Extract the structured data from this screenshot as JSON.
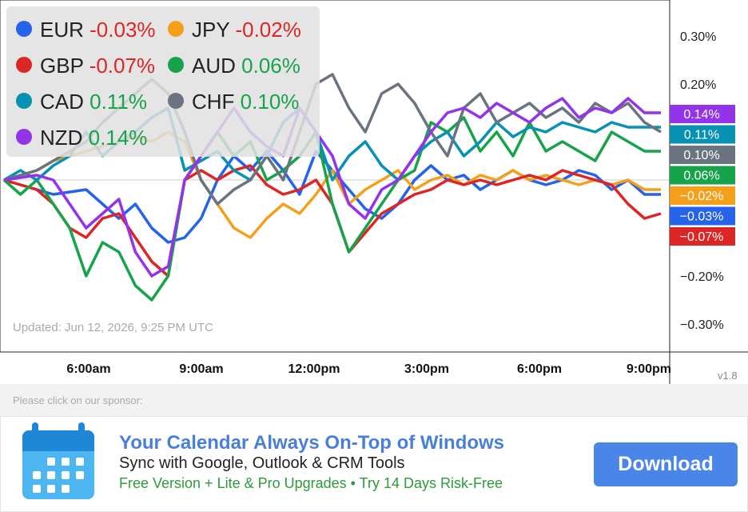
{
  "chart_data": {
    "type": "line",
    "x_ticks": [
      "6:00am",
      "9:00am",
      "12:00pm",
      "3:00pm",
      "6:00pm",
      "9:00pm"
    ],
    "y_ticks": [
      "0.30%",
      "0.20%",
      "−0.20%",
      "−0.30%"
    ],
    "ylim": [
      -0.35,
      0.35
    ],
    "updated": "Updated: Jun 12, 2026, 9:25 PM UTC",
    "series": [
      {
        "name": "EUR",
        "value": "-0.03%",
        "color": "#2563eb",
        "badge": "−0.03%",
        "final": -0.03,
        "points": [
          [
            0,
            0.0
          ],
          [
            3,
            -0.03
          ],
          [
            5,
            -0.02
          ],
          [
            6,
            -0.05
          ],
          [
            7,
            -0.08
          ],
          [
            8,
            -0.05
          ],
          [
            9,
            -0.1
          ],
          [
            10,
            -0.13
          ],
          [
            11,
            -0.12
          ],
          [
            12,
            -0.08
          ],
          [
            13,
            0.0
          ],
          [
            14,
            0.05
          ],
          [
            15,
            0.02
          ],
          [
            16,
            0.06
          ],
          [
            17,
            0.02
          ],
          [
            18,
            -0.03
          ],
          [
            19,
            0.06
          ],
          [
            20,
            0.02
          ],
          [
            21,
            -0.02
          ],
          [
            22,
            -0.06
          ],
          [
            23,
            -0.08
          ],
          [
            24,
            -0.05
          ],
          [
            25,
            0.0
          ],
          [
            26,
            0.03
          ],
          [
            27,
            0.0
          ],
          [
            28,
            0.01
          ],
          [
            29,
            -0.02
          ],
          [
            30,
            0.0
          ],
          [
            31,
            0.02
          ],
          [
            32,
            0.0
          ],
          [
            33,
            -0.01
          ],
          [
            34,
            0.0
          ],
          [
            35,
            0.02
          ],
          [
            36,
            0.01
          ],
          [
            37,
            -0.02
          ],
          [
            38,
            0.0
          ],
          [
            39,
            -0.03
          ],
          [
            40,
            -0.03
          ]
        ]
      },
      {
        "name": "JPY",
        "value": "-0.02%",
        "color": "#f5a01a",
        "badge": "−0.02%",
        "final": -0.02,
        "points": [
          [
            0,
            0.0
          ],
          [
            2,
            0.02
          ],
          [
            3,
            0.04
          ],
          [
            5,
            0.06
          ],
          [
            6,
            0.07
          ],
          [
            7,
            0.08
          ],
          [
            8,
            0.09
          ],
          [
            9,
            0.08
          ],
          [
            10,
            0.1
          ],
          [
            11,
            0.08
          ],
          [
            12,
            0.0
          ],
          [
            13,
            -0.05
          ],
          [
            14,
            -0.1
          ],
          [
            15,
            -0.12
          ],
          [
            16,
            -0.08
          ],
          [
            17,
            -0.05
          ],
          [
            18,
            -0.07
          ],
          [
            19,
            -0.03
          ],
          [
            20,
            0.02
          ],
          [
            21,
            -0.05
          ],
          [
            22,
            -0.02
          ],
          [
            23,
            0.0
          ],
          [
            24,
            0.02
          ],
          [
            25,
            -0.02
          ],
          [
            26,
            0.0
          ],
          [
            27,
            0.01
          ],
          [
            28,
            -0.01
          ],
          [
            29,
            0.01
          ],
          [
            30,
            0.0
          ],
          [
            31,
            0.02
          ],
          [
            32,
            0.0
          ],
          [
            33,
            0.01
          ],
          [
            34,
            0.0
          ],
          [
            35,
            -0.01
          ],
          [
            36,
            0.0
          ],
          [
            37,
            -0.01
          ],
          [
            38,
            0.0
          ],
          [
            39,
            -0.02
          ],
          [
            40,
            -0.02
          ]
        ]
      },
      {
        "name": "GBP",
        "value": "-0.07%",
        "color": "#dc2626",
        "badge": "−0.07%",
        "final": -0.07,
        "points": [
          [
            0,
            0.0
          ],
          [
            2,
            -0.02
          ],
          [
            3,
            -0.05
          ],
          [
            4,
            -0.1
          ],
          [
            5,
            -0.12
          ],
          [
            6,
            -0.08
          ],
          [
            7,
            -0.07
          ],
          [
            8,
            -0.12
          ],
          [
            9,
            -0.17
          ],
          [
            10,
            -0.2
          ],
          [
            11,
            0.0
          ],
          [
            12,
            0.02
          ],
          [
            13,
            0.0
          ],
          [
            14,
            0.02
          ],
          [
            15,
            0.03
          ],
          [
            16,
            -0.01
          ],
          [
            17,
            -0.03
          ],
          [
            18,
            -0.02
          ],
          [
            19,
            0.0
          ],
          [
            20,
            -0.05
          ],
          [
            21,
            -0.15
          ],
          [
            22,
            -0.11
          ],
          [
            23,
            -0.07
          ],
          [
            24,
            -0.05
          ],
          [
            25,
            -0.03
          ],
          [
            26,
            -0.02
          ],
          [
            27,
            0.0
          ],
          [
            28,
            -0.01
          ],
          [
            29,
            0.0
          ],
          [
            30,
            -0.01
          ],
          [
            31,
            0.0
          ],
          [
            32,
            0.01
          ],
          [
            33,
            0.0
          ],
          [
            34,
            0.02
          ],
          [
            35,
            0.01
          ],
          [
            36,
            0.0
          ],
          [
            37,
            -0.01
          ],
          [
            38,
            -0.05
          ],
          [
            39,
            -0.08
          ],
          [
            40,
            -0.07
          ]
        ]
      },
      {
        "name": "AUD",
        "value": "0.06%",
        "color": "#16a34a",
        "badge": "0.06%",
        "final": 0.06,
        "points": [
          [
            0,
            0.0
          ],
          [
            1,
            -0.03
          ],
          [
            2,
            0.0
          ],
          [
            3,
            -0.05
          ],
          [
            4,
            -0.1
          ],
          [
            5,
            -0.2
          ],
          [
            6,
            -0.13
          ],
          [
            7,
            -0.15
          ],
          [
            8,
            -0.22
          ],
          [
            9,
            -0.25
          ],
          [
            10,
            -0.2
          ],
          [
            11,
            0.0
          ],
          [
            12,
            0.05
          ],
          [
            13,
            0.1
          ],
          [
            14,
            0.05
          ],
          [
            15,
            0.08
          ],
          [
            16,
            0.0
          ],
          [
            17,
            0.02
          ],
          [
            18,
            0.05
          ],
          [
            19,
            0.1
          ],
          [
            20,
            -0.05
          ],
          [
            21,
            -0.15
          ],
          [
            22,
            -0.1
          ],
          [
            23,
            -0.05
          ],
          [
            24,
            0.0
          ],
          [
            25,
            0.02
          ],
          [
            26,
            0.12
          ],
          [
            27,
            0.1
          ],
          [
            28,
            0.13
          ],
          [
            29,
            0.06
          ],
          [
            30,
            0.1
          ],
          [
            31,
            0.05
          ],
          [
            32,
            0.12
          ],
          [
            33,
            0.06
          ],
          [
            34,
            0.08
          ],
          [
            35,
            0.06
          ],
          [
            36,
            0.04
          ],
          [
            37,
            0.1
          ],
          [
            38,
            0.08
          ],
          [
            39,
            0.06
          ],
          [
            40,
            0.06
          ]
        ]
      },
      {
        "name": "CAD",
        "value": "0.11%",
        "color": "#0891b2",
        "badge": "0.11%",
        "final": 0.11,
        "points": [
          [
            0,
            0.0
          ],
          [
            1,
            0.02
          ],
          [
            2,
            0.0
          ],
          [
            3,
            0.03
          ],
          [
            4,
            0.05
          ],
          [
            5,
            0.1
          ],
          [
            6,
            0.05
          ],
          [
            7,
            0.08
          ],
          [
            8,
            0.1
          ],
          [
            9,
            0.13
          ],
          [
            10,
            0.15
          ],
          [
            11,
            0.02
          ],
          [
            12,
            0.04
          ],
          [
            13,
            0.06
          ],
          [
            14,
            0.02
          ],
          [
            15,
            0.0
          ],
          [
            16,
            0.05
          ],
          [
            17,
            0.12
          ],
          [
            18,
            0.15
          ],
          [
            19,
            0.1
          ],
          [
            20,
            0.0
          ],
          [
            21,
            0.05
          ],
          [
            22,
            0.08
          ],
          [
            23,
            0.03
          ],
          [
            24,
            0.0
          ],
          [
            25,
            0.05
          ],
          [
            26,
            0.08
          ],
          [
            27,
            0.1
          ],
          [
            28,
            0.05
          ],
          [
            29,
            0.08
          ],
          [
            30,
            0.12
          ],
          [
            31,
            0.09
          ],
          [
            32,
            0.11
          ],
          [
            33,
            0.1
          ],
          [
            34,
            0.12
          ],
          [
            35,
            0.11
          ],
          [
            36,
            0.1
          ],
          [
            37,
            0.12
          ],
          [
            38,
            0.11
          ],
          [
            39,
            0.11
          ],
          [
            40,
            0.11
          ]
        ]
      },
      {
        "name": "CHF",
        "value": "0.10%",
        "color": "#6b7280",
        "badge": "0.10%",
        "final": 0.1,
        "points": [
          [
            0,
            0.0
          ],
          [
            2,
            0.02
          ],
          [
            3,
            0.04
          ],
          [
            4,
            0.06
          ],
          [
            5,
            0.08
          ],
          [
            6,
            0.12
          ],
          [
            7,
            0.15
          ],
          [
            8,
            0.18
          ],
          [
            9,
            0.21
          ],
          [
            10,
            0.18
          ],
          [
            11,
            0.1
          ],
          [
            12,
            0.0
          ],
          [
            13,
            -0.05
          ],
          [
            14,
            -0.02
          ],
          [
            15,
            0.0
          ],
          [
            16,
            0.05
          ],
          [
            17,
            0.0
          ],
          [
            18,
            0.1
          ],
          [
            19,
            0.2
          ],
          [
            20,
            0.22
          ],
          [
            21,
            0.15
          ],
          [
            22,
            0.1
          ],
          [
            23,
            0.18
          ],
          [
            24,
            0.2
          ],
          [
            25,
            0.16
          ],
          [
            26,
            0.1
          ],
          [
            27,
            0.05
          ],
          [
            28,
            0.15
          ],
          [
            29,
            0.18
          ],
          [
            30,
            0.12
          ],
          [
            31,
            0.14
          ],
          [
            32,
            0.16
          ],
          [
            33,
            0.13
          ],
          [
            34,
            0.15
          ],
          [
            35,
            0.12
          ],
          [
            36,
            0.16
          ],
          [
            37,
            0.14
          ],
          [
            38,
            0.16
          ],
          [
            39,
            0.12
          ],
          [
            40,
            0.1
          ]
        ]
      },
      {
        "name": "NZD",
        "value": "0.14%",
        "color": "#9333ea",
        "badge": "0.14%",
        "final": 0.14,
        "points": [
          [
            0,
            0.0
          ],
          [
            2,
            0.01
          ],
          [
            3,
            0.0
          ],
          [
            4,
            -0.05
          ],
          [
            5,
            -0.1
          ],
          [
            6,
            -0.07
          ],
          [
            7,
            -0.04
          ],
          [
            8,
            -0.15
          ],
          [
            9,
            -0.2
          ],
          [
            10,
            -0.18
          ],
          [
            11,
            0.0
          ],
          [
            12,
            0.05
          ],
          [
            13,
            0.1
          ],
          [
            14,
            0.15
          ],
          [
            15,
            0.1
          ],
          [
            16,
            0.07
          ],
          [
            17,
            0.05
          ],
          [
            18,
            0.15
          ],
          [
            19,
            0.1
          ],
          [
            20,
            0.05
          ],
          [
            21,
            -0.05
          ],
          [
            22,
            -0.08
          ],
          [
            23,
            -0.02
          ],
          [
            24,
            0.0
          ],
          [
            25,
            0.05
          ],
          [
            26,
            0.1
          ],
          [
            27,
            0.14
          ],
          [
            28,
            0.15
          ],
          [
            29,
            0.13
          ],
          [
            30,
            0.16
          ],
          [
            31,
            0.14
          ],
          [
            32,
            0.12
          ],
          [
            33,
            0.15
          ],
          [
            34,
            0.17
          ],
          [
            35,
            0.13
          ],
          [
            36,
            0.15
          ],
          [
            37,
            0.14
          ],
          [
            38,
            0.17
          ],
          [
            39,
            0.14
          ],
          [
            40,
            0.14
          ]
        ]
      }
    ]
  },
  "legend": [
    {
      "cur": "EUR",
      "val": "-0.03%",
      "color": "#2563eb",
      "valcolor": "#dc2626"
    },
    {
      "cur": "JPY",
      "val": "-0.02%",
      "color": "#f5a01a",
      "valcolor": "#dc2626"
    },
    {
      "cur": "GBP",
      "val": "-0.07%",
      "color": "#dc2626",
      "valcolor": "#dc2626"
    },
    {
      "cur": "AUD",
      "val": "0.06%",
      "color": "#16a34a",
      "valcolor": "#16a34a"
    },
    {
      "cur": "CAD",
      "val": "0.11%",
      "color": "#0891b2",
      "valcolor": "#16a34a"
    },
    {
      "cur": "CHF",
      "val": "0.10%",
      "color": "#6b7280",
      "valcolor": "#16a34a"
    },
    {
      "cur": "NZD",
      "val": "0.14%",
      "color": "#9333ea",
      "valcolor": "#16a34a"
    }
  ],
  "version": "v1.8",
  "ad": {
    "caption": "Please click on our sponsor:",
    "title": "Your Calendar Always On-Top of Windows",
    "subtitle": "Sync with Google, Outlook & CRM Tools",
    "tagline": "Free Version + Lite & Pro Upgrades • Try 14 Days Risk-Free",
    "button": "Download",
    "icon": "calendar-icon"
  }
}
